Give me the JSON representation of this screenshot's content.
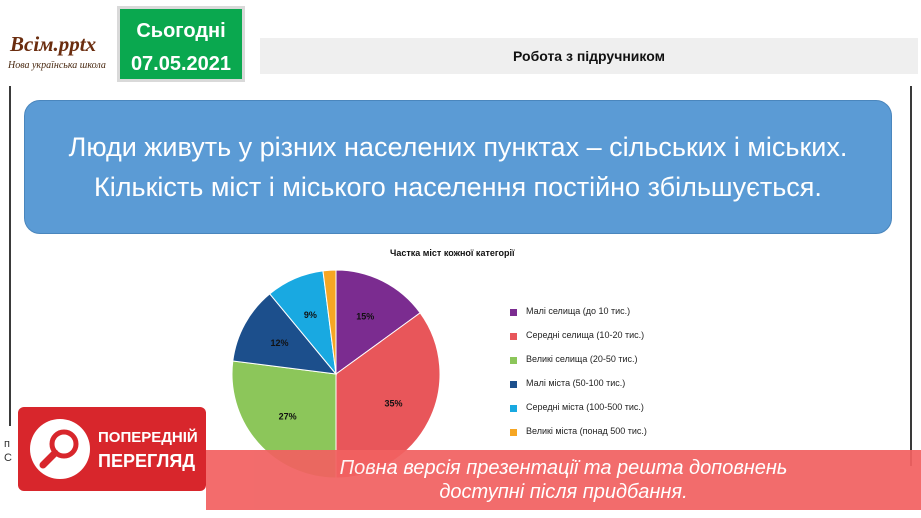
{
  "logo": {
    "main": "Всім.pptx",
    "sub": "Нова українська школа"
  },
  "date": {
    "label": "Сьогодні",
    "value": "07.05.2021"
  },
  "header": {
    "title": "Робота з підручником"
  },
  "main_text": "Люди живуть у різних населених пунктах – сільських і міських. Кількість міст і міського населення постійно збільшується.",
  "chart_data": {
    "type": "pie",
    "title": "Частка міст кожної категорії",
    "categories": [
      "Малі селища (до 10 тис.)",
      "Середні селища (10-20 тис.)",
      "Великі селища (20-50 тис.)",
      "Малі міста (50-100 тис.)",
      "Середні міста (100-500 тис.)",
      "Великі міста (понад 500 тис.)"
    ],
    "values": [
      15,
      35,
      27,
      12,
      9,
      2
    ],
    "value_labels": [
      "15%",
      "35%",
      "27%",
      "12%",
      "9%",
      "2%"
    ],
    "colors": [
      "#7b2c90",
      "#e8565a",
      "#8cc65a",
      "#1c4f8c",
      "#19a9e1",
      "#f6a623"
    ],
    "legend_position": "right"
  },
  "preview": {
    "line1": "ПОПЕРЕДНІЙ",
    "line2": "ПЕРЕГЛЯД",
    "icon": "search-icon"
  },
  "banner": {
    "line1": "Повна версія презентації та решта доповнень",
    "line2": "доступні після придбання."
  },
  "side_fragments": [
    "п",
    "С"
  ],
  "watermark": "https://vsimpptx.com"
}
